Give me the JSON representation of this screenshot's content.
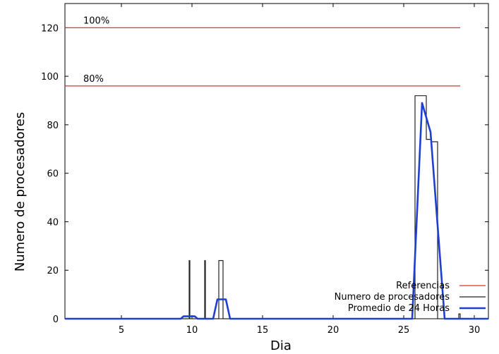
{
  "chart_data": {
    "type": "line",
    "xlabel": "Dia",
    "ylabel": "Numero de procesadores",
    "xlim": [
      1,
      31
    ],
    "ylim": [
      0,
      130
    ],
    "xticks": [
      5,
      10,
      15,
      20,
      25,
      30
    ],
    "yticks": [
      0,
      20,
      40,
      60,
      80,
      100,
      120
    ],
    "xtick_labels": [
      "5",
      "10",
      "15",
      "20",
      "25",
      "30"
    ],
    "ytick_labels": [
      "0",
      "20",
      "40",
      "60",
      "80",
      "100",
      "120"
    ],
    "grid": false,
    "legend_position": "bottom-right",
    "reference_lines": [
      {
        "y": 120,
        "x_end": 29,
        "label": "100%"
      },
      {
        "y": 96,
        "x_end": 29,
        "label": "80%"
      }
    ],
    "series": [
      {
        "name": "Referencias",
        "color": "#dd3333",
        "style": "horizontal"
      },
      {
        "name": "Numero de procesadores",
        "color": "#222222",
        "style": "step",
        "points": [
          [
            1,
            0
          ],
          [
            9.8,
            0
          ],
          [
            9.8,
            24
          ],
          [
            9.85,
            24
          ],
          [
            9.85,
            0
          ],
          [
            10.9,
            0
          ],
          [
            10.9,
            24
          ],
          [
            10.95,
            24
          ],
          [
            10.95,
            0
          ],
          [
            11.9,
            0
          ],
          [
            11.9,
            24
          ],
          [
            12.2,
            24
          ],
          [
            12.2,
            0
          ],
          [
            25.8,
            0
          ],
          [
            25.8,
            92
          ],
          [
            26.6,
            92
          ],
          [
            26.6,
            74
          ],
          [
            26.95,
            74
          ],
          [
            26.95,
            73
          ],
          [
            27.4,
            73
          ],
          [
            27.4,
            0
          ],
          [
            28.9,
            0
          ],
          [
            28.9,
            2
          ],
          [
            29,
            2
          ],
          [
            29,
            0
          ]
        ]
      },
      {
        "name": "Promedio de 24 Horas",
        "color": "#1e3fcf",
        "style": "line",
        "points": [
          [
            1,
            0
          ],
          [
            9.2,
            0
          ],
          [
            9.4,
            1
          ],
          [
            10.2,
            1
          ],
          [
            10.4,
            0
          ],
          [
            11.5,
            0
          ],
          [
            11.8,
            8
          ],
          [
            12.4,
            8
          ],
          [
            12.7,
            0
          ],
          [
            25.6,
            0
          ],
          [
            26.3,
            89
          ],
          [
            26.9,
            77
          ],
          [
            27.9,
            0
          ],
          [
            31,
            0
          ]
        ]
      }
    ]
  }
}
